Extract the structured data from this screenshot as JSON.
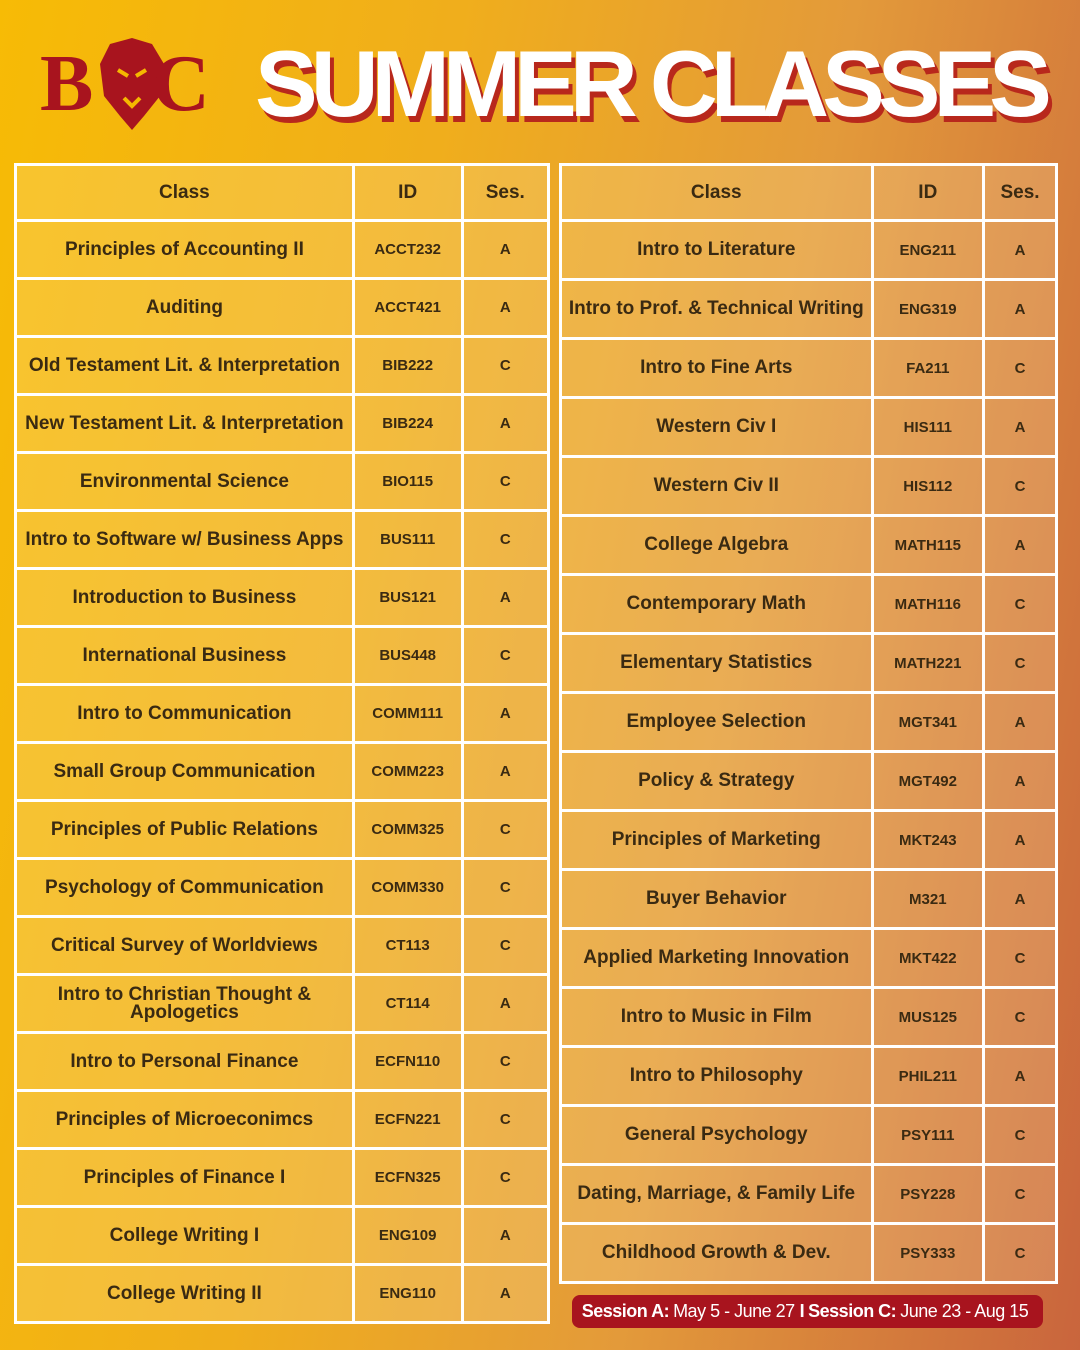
{
  "header": {
    "logo_left": "B",
    "logo_right": "C",
    "title": "SUMMER CLASSES"
  },
  "tables": [
    {
      "header": [
        "Class",
        "ID",
        "Ses."
      ],
      "rows": [
        [
          "Principles of Accounting II",
          "ACCT232",
          "A"
        ],
        [
          "Auditing",
          "ACCT421",
          "A"
        ],
        [
          "Old Testament Lit. & Interpretation",
          "BIB222",
          "C"
        ],
        [
          "New Testament Lit. & Interpretation",
          "BIB224",
          "A"
        ],
        [
          "Environmental Science",
          "BIO115",
          "C"
        ],
        [
          "Intro to Software w/ Business Apps",
          "BUS111",
          "C"
        ],
        [
          "Introduction to Business",
          "BUS121",
          "A"
        ],
        [
          "International Business",
          "BUS448",
          "C"
        ],
        [
          "Intro to Communication",
          "COMM111",
          "A"
        ],
        [
          "Small Group Communication",
          "COMM223",
          "A"
        ],
        [
          "Principles of Public Relations",
          "COMM325",
          "C"
        ],
        [
          "Psychology of Communication",
          "COMM330",
          "C"
        ],
        [
          "Critical Survey of Worldviews",
          "CT113",
          "C"
        ],
        [
          "Intro to Christian Thought & Apologetics",
          "CT114",
          "A"
        ],
        [
          "Intro to Personal Finance",
          "ECFN110",
          "C"
        ],
        [
          "Principles of Microeconimcs",
          "ECFN221",
          "C"
        ],
        [
          "Principles of Finance I",
          "ECFN325",
          "C"
        ],
        [
          "College Writing I",
          "ENG109",
          "A"
        ],
        [
          "College Writing II",
          "ENG110",
          "A"
        ]
      ]
    },
    {
      "header": [
        "Class",
        "ID",
        "Ses."
      ],
      "rows": [
        [
          "Intro to Literature",
          "ENG211",
          "A"
        ],
        [
          "Intro to Prof. & Technical Writing",
          "ENG319",
          "A"
        ],
        [
          "Intro to Fine Arts",
          "FA211",
          "C"
        ],
        [
          "Western Civ I",
          "HIS111",
          "A"
        ],
        [
          "Western Civ II",
          "HIS112",
          "C"
        ],
        [
          "College Algebra",
          "MATH115",
          "A"
        ],
        [
          "Contemporary Math",
          "MATH116",
          "C"
        ],
        [
          "Elementary Statistics",
          "MATH221",
          "C"
        ],
        [
          "Employee Selection",
          "MGT341",
          "A"
        ],
        [
          "Policy & Strategy",
          "MGT492",
          "A"
        ],
        [
          "Principles of Marketing",
          "MKT243",
          "A"
        ],
        [
          "Buyer Behavior",
          "M321",
          "A"
        ],
        [
          "Applied Marketing Innovation",
          "MKT422",
          "C"
        ],
        [
          "Intro to Music in Film",
          "MUS125",
          "C"
        ],
        [
          "Intro to Philosophy",
          "PHIL211",
          "A"
        ],
        [
          "General Psychology",
          "PSY111",
          "C"
        ],
        [
          "Dating, Marriage, & Family Life",
          "PSY228",
          "C"
        ],
        [
          "Childhood Growth & Dev.",
          "PSY333",
          "C"
        ]
      ]
    }
  ],
  "footer": {
    "session_a_label": "Session A:",
    "session_a_dates": "May 5 - June 27",
    "separator": "I",
    "session_c_label": "Session C:",
    "session_c_dates": "June 23 - Aug 15"
  }
}
